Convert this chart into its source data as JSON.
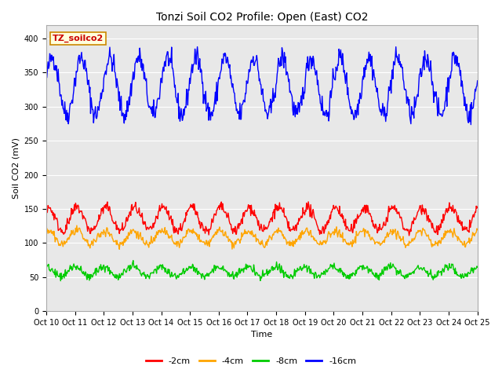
{
  "title": "Tonzi Soil CO2 Profile: Open (East) CO2",
  "ylabel": "Soil CO2 (mV)",
  "xlabel": "Time",
  "xlabels": [
    "Oct 10",
    "Oct 11",
    "Oct 12",
    "Oct 13",
    "Oct 14",
    "Oct 15",
    "Oct 16",
    "Oct 17",
    "Oct 18",
    "Oct 19",
    "Oct 20",
    "Oct 21",
    "Oct 22",
    "Oct 23",
    "Oct 24",
    "Oct 25"
  ],
  "ylim": [
    0,
    420
  ],
  "yticks": [
    0,
    50,
    100,
    150,
    200,
    250,
    300,
    350,
    400
  ],
  "annotation_text": "TZ_soilco2",
  "annotation_bg": "#ffffdd",
  "annotation_border": "#cc8800",
  "annotation_text_color": "#cc0000",
  "plot_bg": "#e8e8e8",
  "fig_bg": "#ffffff",
  "legend_entries": [
    "-2cm",
    "-4cm",
    "-8cm",
    "-16cm"
  ],
  "line_colors": [
    "#ff0000",
    "#ffa500",
    "#00cc00",
    "#0000ff"
  ],
  "line_width": 1.0,
  "n_points": 720,
  "title_fontsize": 10,
  "axis_fontsize": 8,
  "tick_fontsize": 7,
  "legend_fontsize": 8
}
